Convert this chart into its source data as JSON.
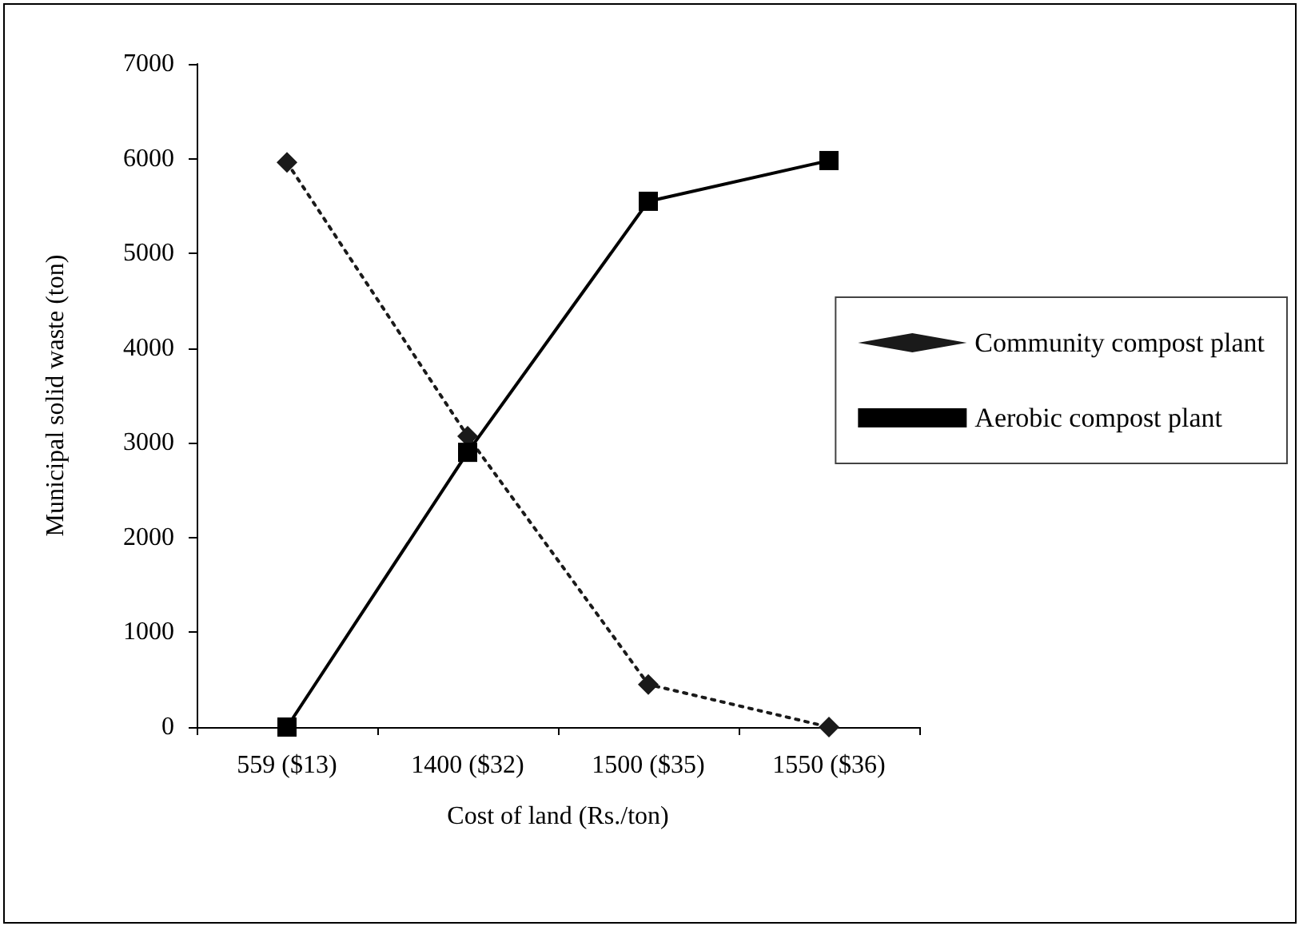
{
  "chart_data": {
    "type": "line",
    "xlabel": "Cost of land (Rs./ton)",
    "ylabel": "Municipal solid waste (ton)",
    "categories": [
      "559 ($13)",
      "1400 ($32)",
      "1500 ($35)",
      "1550 ($36)"
    ],
    "series": [
      {
        "name": "Community compost plant",
        "color": "#1a1a1a",
        "values": [
          5960,
          3070,
          450,
          0
        ],
        "marker": "diamond",
        "line_style": "dotted"
      },
      {
        "name": "Aerobic compost plant",
        "color": "#000000",
        "values": [
          0,
          2900,
          5550,
          5980
        ],
        "marker": "square",
        "line_style": "solid"
      }
    ],
    "ylim": [
      0,
      7000
    ],
    "yticks": [
      0,
      1000,
      2000,
      3000,
      4000,
      5000,
      6000,
      7000
    ],
    "grid": false,
    "legend": "right"
  }
}
